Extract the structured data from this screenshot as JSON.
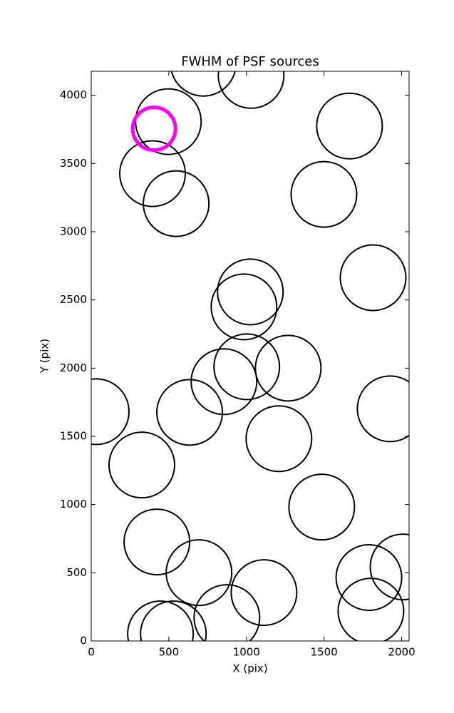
{
  "chart_data": {
    "type": "scatter",
    "title": "FWHM of PSF sources",
    "x_label": "X (pix)",
    "y_label": "Y (pix)",
    "xlim": [
      0,
      2048
    ],
    "ylim": [
      0,
      4176
    ],
    "xticks": [
      0,
      500,
      1000,
      1500,
      2000
    ],
    "yticks": [
      0,
      500,
      1000,
      1500,
      2000,
      2500,
      3000,
      3500,
      4000
    ],
    "series": [
      {
        "color": "#000000",
        "x": [
          722,
          1030,
          497,
          1664,
          395,
          1499,
          547,
          1816,
          1025,
          984,
          1002,
          1269,
          855,
          32,
          634,
          1926,
          1209,
          326,
          1485,
          423,
          694,
          1113,
          1789,
          2009,
          874,
          1802,
          446,
          529
        ],
        "values": [
          4235,
          4146,
          3807,
          3775,
          3426,
          3274,
          3206,
          2663,
          2559,
          2449,
          2010,
          2000,
          1901,
          1681,
          1676,
          1702,
          1483,
          1290,
          982,
          726,
          501,
          355,
          465,
          543,
          172,
          219,
          52,
          52
        ]
      },
      {
        "color": "#ff00ff",
        "x": [
          405
        ],
        "values": [
          3755
        ]
      }
    ]
  }
}
